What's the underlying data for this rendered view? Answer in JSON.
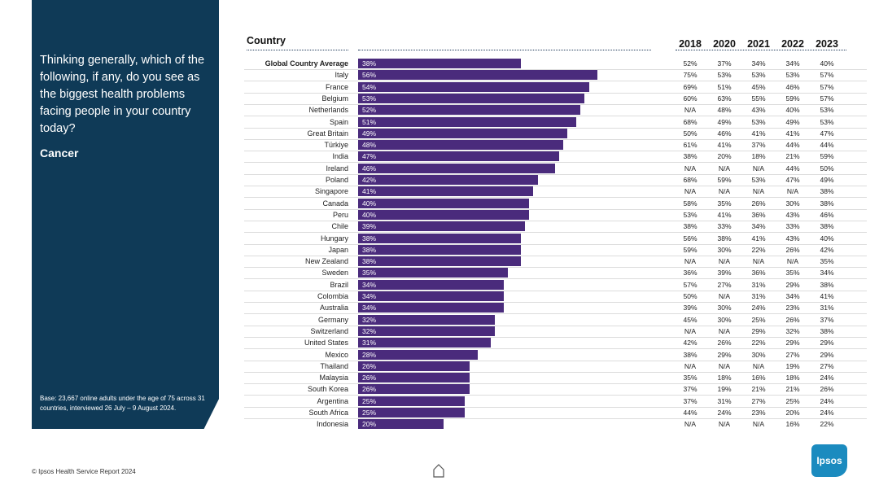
{
  "side_panel": {
    "question": "Thinking generally, which of the following, if any, do you see as the biggest health problems facing people in your country today?",
    "topic": "Cancer",
    "base_note": "Base: 23,667 online adults under the age of 75 across 31 countries, interviewed 26 July – 9 August 2024."
  },
  "table": {
    "country_header": "Country",
    "years": [
      "2018",
      "2020",
      "2021",
      "2022",
      "2023"
    ]
  },
  "chart_data": {
    "type": "bar",
    "orientation": "horizontal",
    "xlim": [
      0,
      100
    ],
    "rows": [
      {
        "country": "Global Country Average",
        "value": 38,
        "label": "38%",
        "history": [
          "52%",
          "37%",
          "34%",
          "34%",
          "40%"
        ]
      },
      {
        "country": "Italy",
        "value": 56,
        "label": "56%",
        "history": [
          "75%",
          "53%",
          "53%",
          "53%",
          "57%"
        ]
      },
      {
        "country": "France",
        "value": 54,
        "label": "54%",
        "history": [
          "69%",
          "51%",
          "45%",
          "46%",
          "57%"
        ]
      },
      {
        "country": "Belgium",
        "value": 53,
        "label": "53%",
        "history": [
          "60%",
          "63%",
          "55%",
          "59%",
          "57%"
        ]
      },
      {
        "country": "Netherlands",
        "value": 52,
        "label": "52%",
        "history": [
          "N/A",
          "48%",
          "43%",
          "40%",
          "53%"
        ]
      },
      {
        "country": "Spain",
        "value": 51,
        "label": "51%",
        "history": [
          "68%",
          "49%",
          "53%",
          "49%",
          "53%"
        ]
      },
      {
        "country": "Great Britain",
        "value": 49,
        "label": "49%",
        "history": [
          "50%",
          "46%",
          "41%",
          "41%",
          "47%"
        ]
      },
      {
        "country": "Türkiye",
        "value": 48,
        "label": "48%",
        "history": [
          "61%",
          "41%",
          "37%",
          "44%",
          "44%"
        ]
      },
      {
        "country": "India",
        "value": 47,
        "label": "47%",
        "history": [
          "38%",
          "20%",
          "18%",
          "21%",
          "59%"
        ]
      },
      {
        "country": "Ireland",
        "value": 46,
        "label": "46%",
        "history": [
          "N/A",
          "N/A",
          "N/A",
          "44%",
          "50%"
        ]
      },
      {
        "country": "Poland",
        "value": 42,
        "label": "42%",
        "history": [
          "68%",
          "59%",
          "53%",
          "47%",
          "49%"
        ]
      },
      {
        "country": "Singapore",
        "value": 41,
        "label": "41%",
        "history": [
          "N/A",
          "N/A",
          "N/A",
          "N/A",
          "38%"
        ]
      },
      {
        "country": "Canada",
        "value": 40,
        "label": "40%",
        "history": [
          "58%",
          "35%",
          "26%",
          "30%",
          "38%"
        ]
      },
      {
        "country": "Peru",
        "value": 40,
        "label": "40%",
        "history": [
          "53%",
          "41%",
          "36%",
          "43%",
          "46%"
        ]
      },
      {
        "country": "Chile",
        "value": 39,
        "label": "39%",
        "history": [
          "38%",
          "33%",
          "34%",
          "33%",
          "38%"
        ]
      },
      {
        "country": "Hungary",
        "value": 38,
        "label": "38%",
        "history": [
          "56%",
          "38%",
          "41%",
          "43%",
          "40%"
        ]
      },
      {
        "country": "Japan",
        "value": 38,
        "label": "38%",
        "history": [
          "59%",
          "30%",
          "22%",
          "26%",
          "42%"
        ]
      },
      {
        "country": "New Zealand",
        "value": 38,
        "label": "38%",
        "history": [
          "N/A",
          "N/A",
          "N/A",
          "N/A",
          "35%"
        ]
      },
      {
        "country": "Sweden",
        "value": 35,
        "label": "35%",
        "history": [
          "36%",
          "39%",
          "36%",
          "35%",
          "34%"
        ]
      },
      {
        "country": "Brazil",
        "value": 34,
        "label": "34%",
        "history": [
          "57%",
          "27%",
          "31%",
          "29%",
          "38%"
        ]
      },
      {
        "country": "Colombia",
        "value": 34,
        "label": "34%",
        "history": [
          "50%",
          "N/A",
          "31%",
          "34%",
          "41%"
        ]
      },
      {
        "country": "Australia",
        "value": 34,
        "label": "34%",
        "history": [
          "39%",
          "30%",
          "24%",
          "23%",
          "31%"
        ]
      },
      {
        "country": "Germany",
        "value": 32,
        "label": "32%",
        "history": [
          "45%",
          "30%",
          "25%",
          "26%",
          "37%"
        ]
      },
      {
        "country": "Switzerland",
        "value": 32,
        "label": "32%",
        "history": [
          "N/A",
          "N/A",
          "29%",
          "32%",
          "38%"
        ]
      },
      {
        "country": "United States",
        "value": 31,
        "label": "31%",
        "history": [
          "42%",
          "26%",
          "22%",
          "29%",
          "29%"
        ]
      },
      {
        "country": "Mexico",
        "value": 28,
        "label": "28%",
        "history": [
          "38%",
          "29%",
          "30%",
          "27%",
          "29%"
        ]
      },
      {
        "country": "Thailand",
        "value": 26,
        "label": "26%",
        "history": [
          "N/A",
          "N/A",
          "N/A",
          "19%",
          "27%"
        ]
      },
      {
        "country": "Malaysia",
        "value": 26,
        "label": "26%",
        "history": [
          "35%",
          "18%",
          "16%",
          "18%",
          "24%"
        ]
      },
      {
        "country": "South Korea",
        "value": 26,
        "label": "26%",
        "history": [
          "37%",
          "19%",
          "21%",
          "21%",
          "26%"
        ]
      },
      {
        "country": "Argentina",
        "value": 25,
        "label": "25%",
        "history": [
          "37%",
          "31%",
          "27%",
          "25%",
          "24%"
        ]
      },
      {
        "country": "South Africa",
        "value": 25,
        "label": "25%",
        "history": [
          "44%",
          "24%",
          "23%",
          "20%",
          "24%"
        ]
      },
      {
        "country": "Indonesia",
        "value": 20,
        "label": "20%",
        "history": [
          "N/A",
          "N/A",
          "N/A",
          "16%",
          "22%"
        ]
      }
    ]
  },
  "footer": {
    "copyright": "© Ipsos Health Service Report 2024"
  },
  "logo": {
    "text": "Ipsos"
  },
  "colors": {
    "panel": "#0f3a57",
    "bar": "#4a2b7c",
    "logo": "#1b8bbf"
  }
}
